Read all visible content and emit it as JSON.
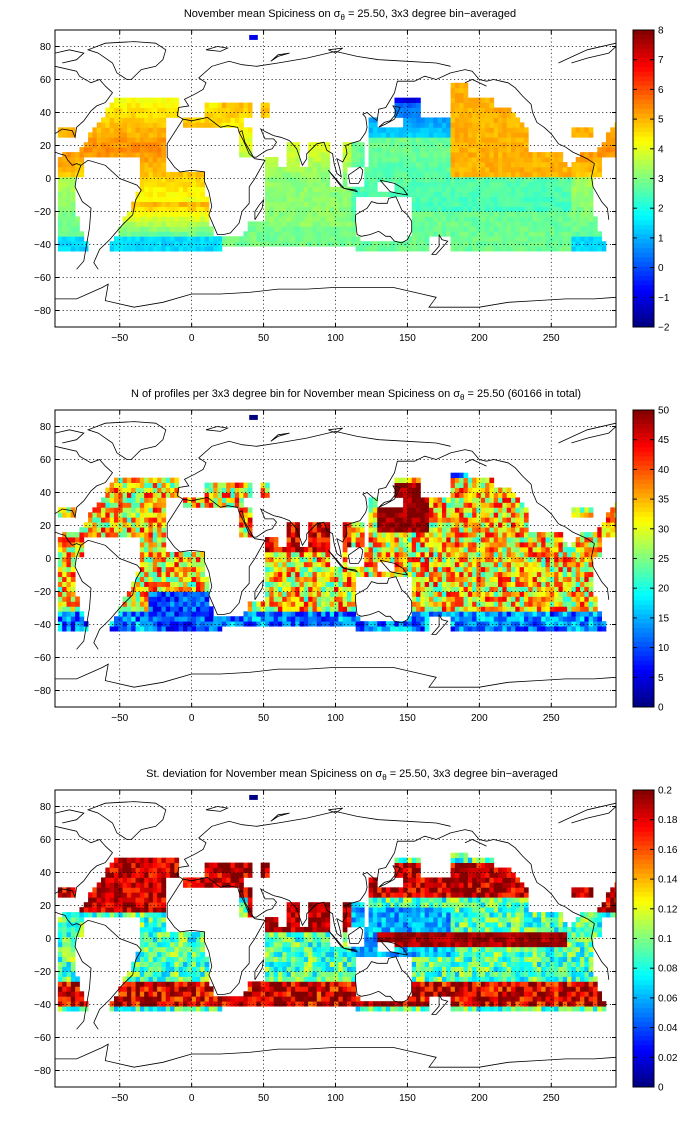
{
  "chart_data": [
    {
      "type": "heatmap",
      "title_prefix": "November mean Spiciness on σ",
      "title_sub": "θ",
      "title_suffix": " = 25.50, 3x3 degree bin−averaged",
      "x_ticks": [
        "−50",
        "0",
        "50",
        "100",
        "150",
        "200",
        "250"
      ],
      "x_tick_values": [
        -50,
        0,
        50,
        100,
        150,
        200,
        250
      ],
      "y_ticks": [
        "80",
        "60",
        "40",
        "20",
        "0",
        "−20",
        "−40",
        "−60",
        "−80"
      ],
      "y_tick_values": [
        80,
        60,
        40,
        20,
        0,
        -20,
        -40,
        -60,
        -80
      ],
      "xlim": [
        -95,
        295
      ],
      "ylim": [
        -90,
        90
      ],
      "colorbar_ticks": [
        "8",
        "7",
        "6",
        "5",
        "4",
        "3",
        "2",
        "1",
        "0",
        "−1",
        "−2"
      ],
      "colorbar_values": [
        8,
        7,
        6,
        5,
        4,
        3,
        2,
        1,
        0,
        -1,
        -2
      ],
      "clim": [
        -2,
        8
      ],
      "colormap": "jet",
      "grid": true,
      "field": "spiciness"
    },
    {
      "type": "heatmap",
      "title_prefix": "N of profiles per 3x3 degree bin for November mean Spiciness on σ",
      "title_sub": "θ",
      "title_suffix": " = 25.50 (60166 in total)",
      "x_ticks": [
        "−50",
        "0",
        "50",
        "100",
        "150",
        "200",
        "250"
      ],
      "x_tick_values": [
        -50,
        0,
        50,
        100,
        150,
        200,
        250
      ],
      "y_ticks": [
        "80",
        "60",
        "40",
        "20",
        "0",
        "−20",
        "−40",
        "−60",
        "−80"
      ],
      "y_tick_values": [
        80,
        60,
        40,
        20,
        0,
        -20,
        -40,
        -60,
        -80
      ],
      "xlim": [
        -95,
        295
      ],
      "ylim": [
        -90,
        90
      ],
      "colorbar_ticks": [
        "50",
        "45",
        "40",
        "35",
        "30",
        "25",
        "20",
        "15",
        "10",
        "5",
        "0"
      ],
      "colorbar_values": [
        50,
        45,
        40,
        35,
        30,
        25,
        20,
        15,
        10,
        5,
        0
      ],
      "clim": [
        0,
        50
      ],
      "colormap": "jet",
      "grid": true,
      "field": "count"
    },
    {
      "type": "heatmap",
      "title_prefix": "St. deviation for November mean Spiciness on σ",
      "title_sub": "θ",
      "title_suffix": " = 25.50, 3x3 degree bin−averaged",
      "x_ticks": [
        "−50",
        "0",
        "50",
        "100",
        "150",
        "200",
        "250"
      ],
      "x_tick_values": [
        -50,
        0,
        50,
        100,
        150,
        200,
        250
      ],
      "y_ticks": [
        "80",
        "60",
        "40",
        "20",
        "0",
        "−20",
        "−40",
        "−60",
        "−80"
      ],
      "y_tick_values": [
        80,
        60,
        40,
        20,
        0,
        -20,
        -40,
        -60,
        -80
      ],
      "xlim": [
        -95,
        295
      ],
      "ylim": [
        -90,
        90
      ],
      "colorbar_ticks": [
        "0.2",
        "0.18",
        "0.16",
        "0.14",
        "0.12",
        "0.1",
        "0.08",
        "0.06",
        "0.04",
        "0.02",
        "0"
      ],
      "colorbar_values": [
        0.2,
        0.18,
        0.16,
        0.14,
        0.12,
        0.1,
        0.08,
        0.06,
        0.04,
        0.02,
        0
      ],
      "clim": [
        0,
        0.2
      ],
      "colormap": "jet",
      "grid": true,
      "field": "stdev"
    }
  ]
}
